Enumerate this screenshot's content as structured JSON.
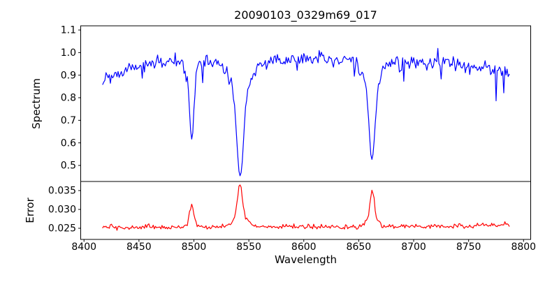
{
  "figure": {
    "title": "20090103_0329m69_017",
    "background": "#ffffff",
    "text_color": "#000000",
    "axis_color": "#000000"
  },
  "chart_data": {
    "type": "line",
    "title": "20090103_0329m69_017",
    "xlabel": "Wavelength",
    "xlim": [
      8397,
      8806.5
    ],
    "x_ticks": [
      8400,
      8450,
      8500,
      8550,
      8600,
      8650,
      8700,
      8750,
      8800
    ],
    "x_tick_labels": [
      "8400",
      "8450",
      "8500",
      "8550",
      "8600",
      "8650",
      "8700",
      "8750",
      "8800"
    ],
    "x_data_range": [
      8417,
      8787
    ],
    "sample_step_angstrom": 1.0,
    "noise_seed": 20090103,
    "grid": false,
    "legend": "none",
    "panels": [
      {
        "name": "spectrum",
        "ylabel": "Spectrum",
        "color": "#0000ff",
        "ylim": [
          0.4289,
          1.1186
        ],
        "y_ticks": [
          0.5,
          0.6,
          0.7,
          0.8,
          0.9,
          1.0,
          1.1
        ],
        "y_tick_labels": [
          "0.5",
          "0.6",
          "0.7",
          "0.8",
          "0.9",
          "1.0",
          "1.1"
        ],
        "mode": "absorption",
        "baseline": {
          "x": [
            8417,
            8427,
            8440,
            8452,
            8470,
            8490,
            8510,
            8530,
            8550,
            8570,
            8590,
            8610,
            8630,
            8650,
            8670,
            8690,
            8710,
            8730,
            8750,
            8770,
            8787
          ],
          "y": [
            0.885,
            0.905,
            0.925,
            0.945,
            0.955,
            0.962,
            0.962,
            0.966,
            0.966,
            0.962,
            0.968,
            0.972,
            0.972,
            0.965,
            0.958,
            0.955,
            0.952,
            0.952,
            0.94,
            0.935,
            0.91
          ]
        },
        "features": [
          {
            "center": 8498.0,
            "amplitude": 0.345,
            "core_sigma": 2.0,
            "core_weight": 0.85,
            "wing_sigma": 5.5,
            "wing_weight": 0.15,
            "extreme_value": 0.62
          },
          {
            "center": 8542.1,
            "amplitude": 0.515,
            "core_sigma": 3.0,
            "core_weight": 0.72,
            "wing_sigma": 9.0,
            "wing_weight": 0.28,
            "extreme_value": 0.46
          },
          {
            "center": 8662.1,
            "amplitude": 0.435,
            "core_sigma": 2.6,
            "core_weight": 0.75,
            "wing_sigma": 7.5,
            "wing_weight": 0.25,
            "extreme_value": 0.53
          }
        ],
        "noise_sigma": 0.0155,
        "spike_prob": 0.04,
        "events": [
          {
            "x": 8722,
            "dv": 0.105
          },
          {
            "x": 8775,
            "dv": -0.125
          }
        ]
      },
      {
        "name": "error",
        "ylabel": "Error",
        "color": "#ff0000",
        "ylim": [
          0.02204,
          0.03741
        ],
        "y_ticks": [
          0.025,
          0.03,
          0.035
        ],
        "y_tick_labels": [
          "0.025",
          "0.030",
          "0.035"
        ],
        "mode": "emission",
        "baseline": {
          "x": [
            8417,
            8450,
            8500,
            8550,
            8600,
            8650,
            8700,
            8750,
            8787
          ],
          "y": [
            0.0252,
            0.0253,
            0.0253,
            0.0254,
            0.0254,
            0.0255,
            0.0255,
            0.0256,
            0.0258
          ]
        },
        "features": [
          {
            "center": 8498.0,
            "amplitude": 0.0066,
            "core_sigma": 1.6,
            "core_weight": 0.8,
            "wing_sigma": 4.0,
            "wing_weight": 0.2,
            "extreme_value": 0.032
          },
          {
            "center": 8542.1,
            "amplitude": 0.0116,
            "core_sigma": 2.0,
            "core_weight": 0.75,
            "wing_sigma": 6.0,
            "wing_weight": 0.25,
            "extreme_value": 0.037
          },
          {
            "center": 8662.1,
            "amplitude": 0.009,
            "core_sigma": 1.8,
            "core_weight": 0.75,
            "wing_sigma": 5.0,
            "wing_weight": 0.25,
            "extreme_value": 0.0345
          }
        ],
        "noise_sigma": 0.00033,
        "spike_prob": 0,
        "events": []
      }
    ]
  }
}
